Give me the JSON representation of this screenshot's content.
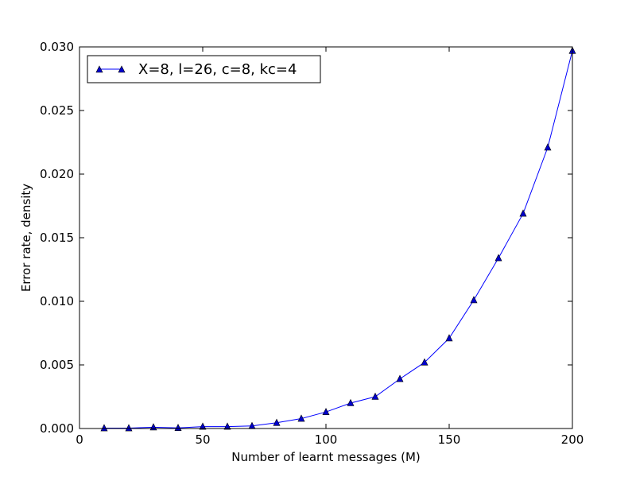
{
  "chart_data": {
    "type": "line",
    "xlabel": "Number of learnt messages (M)",
    "ylabel": "Error rate, density",
    "xlim": [
      0,
      200
    ],
    "ylim": [
      0,
      0.03
    ],
    "x_ticks": [
      "0",
      "50",
      "100",
      "150",
      "200"
    ],
    "y_ticks": [
      "0.000",
      "0.005",
      "0.010",
      "0.015",
      "0.020",
      "0.025",
      "0.030"
    ],
    "grid": false,
    "legend_position": "upper-left",
    "series": [
      {
        "name": "X=8, l=26, c=8, kc=4",
        "color": "#0000ff",
        "marker": "triangle",
        "x": [
          10,
          20,
          30,
          40,
          50,
          60,
          70,
          80,
          90,
          100,
          110,
          120,
          130,
          140,
          150,
          160,
          170,
          180,
          190,
          200
        ],
        "y": [
          3e-05,
          3e-05,
          0.0001,
          5e-05,
          0.00015,
          0.00015,
          0.0002,
          0.00045,
          0.00078,
          0.0013,
          0.002,
          0.0025,
          0.0039,
          0.0052,
          0.0071,
          0.0101,
          0.0134,
          0.0169,
          0.0221,
          0.0297
        ]
      }
    ]
  }
}
